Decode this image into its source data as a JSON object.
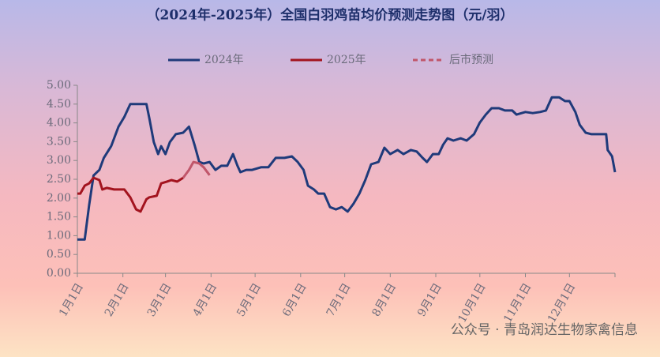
{
  "chart_data": {
    "type": "line",
    "title": "（2024年-2025年）全国白羽鸡苗均价预测走势图（元/羽）",
    "watermark": "公众号 · 青岛润达生物家禽信息",
    "xlim": [
      0,
      366
    ],
    "xticks": [
      {
        "value": 0,
        "label": "1月1日"
      },
      {
        "value": 31,
        "label": "2月1日"
      },
      {
        "value": 60,
        "label": "3月1日"
      },
      {
        "value": 91,
        "label": "4月1日"
      },
      {
        "value": 121,
        "label": "5月1日"
      },
      {
        "value": 152,
        "label": "6月1日"
      },
      {
        "value": 182,
        "label": "7月1日"
      },
      {
        "value": 213,
        "label": "8月1日"
      },
      {
        "value": 244,
        "label": "9月1日"
      },
      {
        "value": 274,
        "label": "10月1日"
      },
      {
        "value": 305,
        "label": "11月1日"
      },
      {
        "value": 335,
        "label": "12月1日"
      },
      {
        "value": 366,
        "label": ""
      }
    ],
    "ylim": [
      0,
      5
    ],
    "yticks": [
      {
        "value": 0,
        "label": "0.00"
      },
      {
        "value": 0.5,
        "label": "0.50"
      },
      {
        "value": 1,
        "label": "1.00"
      },
      {
        "value": 1.5,
        "label": "1.50"
      },
      {
        "value": 2,
        "label": "2.00"
      },
      {
        "value": 2.5,
        "label": "2.50"
      },
      {
        "value": 3,
        "label": "3.00"
      },
      {
        "value": 3.5,
        "label": "3.50"
      },
      {
        "value": 4,
        "label": "4.00"
      },
      {
        "value": 4.5,
        "label": "4.50"
      },
      {
        "value": 5,
        "label": "5.00"
      }
    ],
    "series": [
      {
        "name": "2024年",
        "color": "#1f3a7a",
        "dashed": false,
        "x": [
          0,
          5,
          8,
          11,
          15,
          18,
          23,
          28,
          32,
          36,
          47,
          49,
          52,
          55,
          57,
          60,
          63,
          67,
          72,
          76,
          80,
          83,
          86,
          90,
          94,
          98,
          102,
          106,
          109,
          111,
          115,
          119,
          125,
          130,
          135,
          141,
          146,
          150,
          154,
          157,
          161,
          164,
          168,
          172,
          176,
          180,
          184,
          188,
          192,
          196,
          200,
          205,
          209,
          213,
          218,
          222,
          227,
          231,
          235,
          238,
          242,
          246,
          249,
          252,
          256,
          261,
          265,
          270,
          274,
          278,
          282,
          287,
          291,
          296,
          299,
          305,
          310,
          315,
          319,
          323,
          328,
          332,
          335,
          339,
          342,
          346,
          350,
          356,
          360,
          361,
          364,
          366
        ],
        "values": [
          0.9,
          0.9,
          1.81,
          2.6,
          2.75,
          3.07,
          3.38,
          3.9,
          4.16,
          4.5,
          4.5,
          4.12,
          3.49,
          3.17,
          3.38,
          3.17,
          3.49,
          3.7,
          3.74,
          3.9,
          3.38,
          2.96,
          2.92,
          2.96,
          2.75,
          2.86,
          2.86,
          3.17,
          2.86,
          2.69,
          2.75,
          2.75,
          2.82,
          2.82,
          3.07,
          3.07,
          3.11,
          2.96,
          2.75,
          2.33,
          2.23,
          2.12,
          2.12,
          1.76,
          1.7,
          1.76,
          1.64,
          1.85,
          2.12,
          2.48,
          2.9,
          2.96,
          3.34,
          3.17,
          3.28,
          3.17,
          3.28,
          3.24,
          3.07,
          2.96,
          3.17,
          3.17,
          3.42,
          3.59,
          3.53,
          3.59,
          3.53,
          3.7,
          4.01,
          4.22,
          4.39,
          4.39,
          4.33,
          4.33,
          4.22,
          4.29,
          4.26,
          4.29,
          4.33,
          4.68,
          4.68,
          4.58,
          4.58,
          4.29,
          3.95,
          3.74,
          3.7,
          3.7,
          3.7,
          3.28,
          3.11,
          2.69
        ]
      },
      {
        "name": "2025年",
        "color": "#a3141f",
        "dashed": false,
        "x": [
          0,
          2,
          5,
          8,
          11,
          15,
          17,
          20,
          25,
          32,
          36,
          40,
          43,
          47,
          49,
          54,
          57,
          61,
          64,
          68,
          72
        ],
        "values": [
          2.12,
          2.12,
          2.33,
          2.39,
          2.54,
          2.48,
          2.23,
          2.27,
          2.23,
          2.23,
          2.02,
          1.7,
          1.64,
          1.97,
          2.02,
          2.06,
          2.39,
          2.44,
          2.48,
          2.44,
          2.54
        ]
      },
      {
        "name": "后市预测",
        "color": "#c0566a",
        "dashed": true,
        "x": [
          72,
          76,
          79,
          83,
          86,
          90
        ],
        "values": [
          2.54,
          2.75,
          2.96,
          2.92,
          2.82,
          2.61
        ]
      }
    ]
  }
}
